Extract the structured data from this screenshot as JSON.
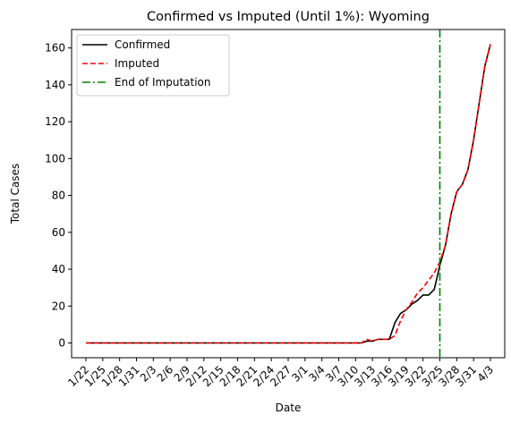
{
  "chart_data": {
    "type": "line",
    "title": "Confirmed vs Imputed (Until 1%): Wyoming",
    "xlabel": "Date",
    "ylabel": "Total Cases",
    "ylim": [
      -8,
      170
    ],
    "grid": false,
    "legend_position": "upper-left",
    "x": [
      "1/22",
      "1/23",
      "1/24",
      "1/25",
      "1/26",
      "1/27",
      "1/28",
      "1/29",
      "1/30",
      "1/31",
      "2/1",
      "2/2",
      "2/3",
      "2/4",
      "2/5",
      "2/6",
      "2/7",
      "2/8",
      "2/9",
      "2/10",
      "2/11",
      "2/12",
      "2/13",
      "2/14",
      "2/15",
      "2/16",
      "2/17",
      "2/18",
      "2/19",
      "2/20",
      "2/21",
      "2/22",
      "2/23",
      "2/24",
      "2/25",
      "2/26",
      "2/27",
      "2/28",
      "2/29",
      "3/1",
      "3/2",
      "3/3",
      "3/4",
      "3/5",
      "3/6",
      "3/7",
      "3/8",
      "3/9",
      "3/10",
      "3/11",
      "3/12",
      "3/13",
      "3/14",
      "3/15",
      "3/16",
      "3/17",
      "3/18",
      "3/19",
      "3/20",
      "3/21",
      "3/22",
      "3/23",
      "3/24",
      "3/25",
      "3/26",
      "3/27",
      "3/28",
      "3/29",
      "3/30",
      "3/31",
      "4/1",
      "4/2",
      "4/3"
    ],
    "x_ticks": [
      "1/22",
      "1/25",
      "1/28",
      "1/31",
      "2/3",
      "2/6",
      "2/9",
      "2/12",
      "2/15",
      "2/18",
      "2/21",
      "2/24",
      "2/27",
      "3/1",
      "3/4",
      "3/7",
      "3/10",
      "3/13",
      "3/16",
      "3/19",
      "3/22",
      "3/25",
      "3/28",
      "3/31",
      "4/3"
    ],
    "y_ticks": [
      0,
      20,
      40,
      60,
      80,
      100,
      120,
      140,
      160
    ],
    "series": [
      {
        "name": "Confirmed",
        "color": "#000000",
        "dash": "solid",
        "values": [
          0,
          0,
          0,
          0,
          0,
          0,
          0,
          0,
          0,
          0,
          0,
          0,
          0,
          0,
          0,
          0,
          0,
          0,
          0,
          0,
          0,
          0,
          0,
          0,
          0,
          0,
          0,
          0,
          0,
          0,
          0,
          0,
          0,
          0,
          0,
          0,
          0,
          0,
          0,
          0,
          0,
          0,
          0,
          0,
          0,
          0,
          0,
          0,
          0,
          0,
          1,
          1,
          2,
          2,
          2,
          11,
          16,
          18,
          21,
          23,
          26,
          26,
          29,
          42,
          53,
          70,
          82,
          86,
          94,
          110,
          130,
          150,
          162
        ]
      },
      {
        "name": "Imputed",
        "color": "#ff0000",
        "dash": "dashed",
        "values": [
          0,
          0,
          0,
          0,
          0,
          0,
          0,
          0,
          0,
          0,
          0,
          0,
          0,
          0,
          0,
          0,
          0,
          0,
          0,
          0,
          0,
          0,
          0,
          0,
          0,
          0,
          0,
          0,
          0,
          0,
          0,
          0,
          0,
          0,
          0,
          0,
          0,
          0,
          0,
          0,
          0,
          0,
          0,
          0,
          0,
          0,
          0,
          0,
          0,
          0,
          2,
          1,
          2,
          2,
          2,
          4,
          12,
          18,
          22,
          27,
          30,
          34,
          38,
          44,
          53,
          70,
          82,
          86,
          94,
          110,
          130,
          150,
          162
        ]
      }
    ],
    "vline": {
      "name": "End of Imputation",
      "x": "3/25",
      "color": "#008000",
      "dash": "dashdot"
    }
  }
}
